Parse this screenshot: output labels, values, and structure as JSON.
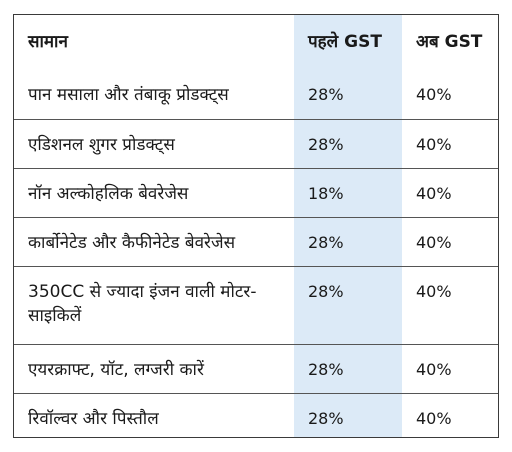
{
  "table": {
    "headers": [
      "सामान",
      "पहले GST",
      "अब GST"
    ],
    "rows": [
      {
        "item": "पान मसाला और तंबाकू प्रोडक्ट्स",
        "before": "28%",
        "after": "40%"
      },
      {
        "item": "एडिशनल शुगर प्रोडक्ट्स",
        "before": "28%",
        "after": "40%"
      },
      {
        "item": "नॉन अल्कोहलिक बेवरेजेस",
        "before": "18%",
        "after": "40%"
      },
      {
        "item": "कार्बोनेटेड और कैफीनेटेड बेवरेजेस",
        "before": "28%",
        "after": "40%"
      },
      {
        "item": "350CC से ज्यादा इंजन वाली मोटर-साइकिलें",
        "before": "28%",
        "after": "40%"
      },
      {
        "item": "एयरक्राफ्ट, यॉट, लग्जरी कारें",
        "before": "28%",
        "after": "40%"
      },
      {
        "item": "रिवॉल्वर और पिस्तौल",
        "before": "28%",
        "after": "40%"
      }
    ]
  },
  "colors": {
    "highlight_column": "#dceaf7",
    "border": "#3a3a3a"
  }
}
